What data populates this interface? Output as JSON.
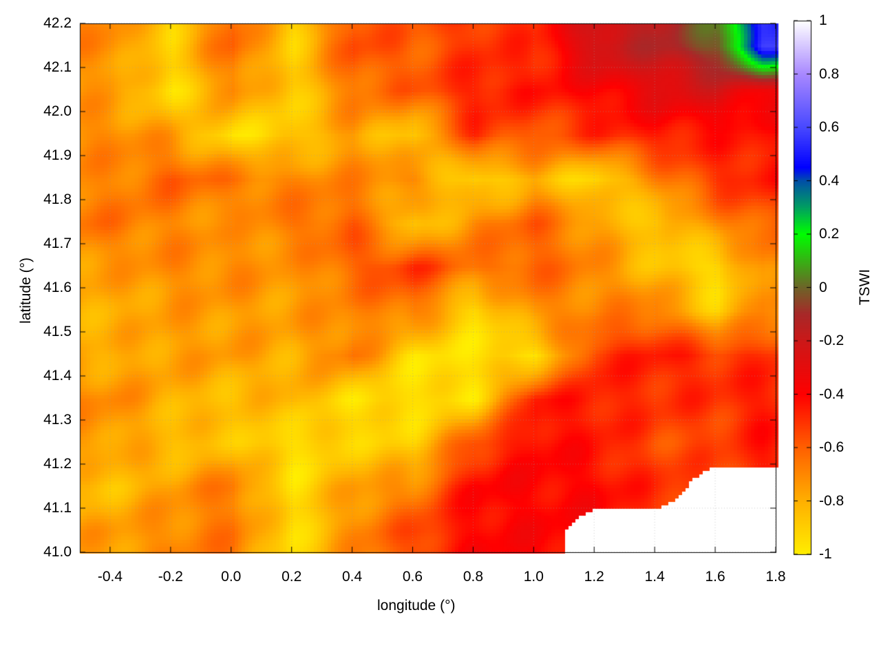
{
  "chart_data": {
    "type": "heatmap",
    "xlabel": "longitude (°)",
    "ylabel": "latitude (°)",
    "colorbar_label": "TSWI",
    "xlim": [
      -0.5,
      1.8
    ],
    "ylim": [
      41.0,
      42.2
    ],
    "clim": [
      -1,
      1
    ],
    "xticks": [
      "-0.4",
      "-0.2",
      "0.0",
      "0.2",
      "0.4",
      "0.6",
      "0.8",
      "1.0",
      "1.2",
      "1.4",
      "1.6",
      "1.8"
    ],
    "yticks": [
      "41.0",
      "41.1",
      "41.2",
      "41.3",
      "41.4",
      "41.5",
      "41.6",
      "41.7",
      "41.8",
      "41.9",
      "42.0",
      "42.1",
      "42.2"
    ],
    "cticks": [
      "-1",
      "-0.8",
      "-0.6",
      "-0.4",
      "-0.2",
      "0",
      "0.2",
      "0.4",
      "0.6",
      "0.8",
      "1"
    ],
    "grid": true,
    "contours": true,
    "palette": [
      [
        -1,
        "#ffee00"
      ],
      [
        -0.8,
        "#ffb000"
      ],
      [
        -0.6,
        "#ff6000"
      ],
      [
        -0.4,
        "#ff0000"
      ],
      [
        -0.2,
        "#cc1818"
      ],
      [
        -0.1,
        "#a82828"
      ],
      [
        0,
        "#6e6428"
      ],
      [
        0.2,
        "#00ff00"
      ],
      [
        0.3,
        "#00a060"
      ],
      [
        0.4,
        "#0050a8"
      ],
      [
        0.45,
        "#0000ff"
      ],
      [
        0.6,
        "#4848ff"
      ],
      [
        0.8,
        "#a888ff"
      ],
      [
        1,
        "#ffffff"
      ]
    ],
    "grid_lon": [
      -0.4,
      -0.2,
      0.0,
      0.2,
      0.4,
      0.6,
      0.8,
      1.0,
      1.2,
      1.4,
      1.6,
      1.75
    ],
    "grid_lat": [
      42.15,
      42.05,
      41.95,
      41.85,
      41.75,
      41.65,
      41.55,
      41.45,
      41.35,
      41.25,
      41.15,
      41.05
    ],
    "values": [
      [
        -0.7,
        -0.9,
        -0.6,
        -0.9,
        -0.55,
        -0.6,
        -0.5,
        -0.5,
        -0.2,
        -0.15,
        0.0,
        0.55
      ],
      [
        -0.75,
        -0.95,
        -0.7,
        -0.9,
        -0.65,
        -0.6,
        -0.45,
        -0.45,
        -0.4,
        -0.3,
        -0.25,
        -0.35
      ],
      [
        -0.7,
        -0.75,
        -0.95,
        -0.9,
        -0.75,
        -0.9,
        -0.5,
        -0.6,
        -0.5,
        -0.45,
        -0.45,
        -0.45
      ],
      [
        -0.7,
        -0.6,
        -0.65,
        -0.7,
        -0.7,
        -0.7,
        -0.95,
        -0.8,
        -0.95,
        -0.7,
        -0.5,
        -0.45
      ],
      [
        -0.65,
        -0.7,
        -0.75,
        -0.65,
        -0.6,
        -0.9,
        -0.7,
        -0.6,
        -0.75,
        -0.9,
        -0.7,
        -0.6
      ],
      [
        -0.75,
        -0.7,
        -0.7,
        -0.75,
        -0.6,
        -0.5,
        -0.65,
        -0.6,
        -0.7,
        -0.85,
        -0.95,
        -0.7
      ],
      [
        -0.8,
        -0.75,
        -0.75,
        -0.75,
        -0.7,
        -0.65,
        -0.95,
        -0.7,
        -0.7,
        -0.65,
        -0.9,
        -0.7
      ],
      [
        -0.8,
        -0.75,
        -0.75,
        -0.8,
        -0.65,
        -0.95,
        -0.95,
        -0.95,
        -0.5,
        -0.45,
        -0.5,
        -0.5
      ],
      [
        -0.7,
        -0.8,
        -0.85,
        -0.8,
        -0.95,
        -0.95,
        -0.95,
        -0.45,
        -0.45,
        -0.5,
        -0.5,
        -0.45
      ],
      [
        -0.75,
        -0.85,
        -0.85,
        -0.95,
        -0.9,
        -0.9,
        -0.55,
        -0.4,
        -0.45,
        -0.55,
        -0.55,
        -0.45
      ],
      [
        -0.85,
        -0.75,
        -0.65,
        -0.95,
        -0.75,
        -0.7,
        -0.4,
        -0.4,
        -0.4,
        -0.5,
        null,
        null
      ],
      [
        -0.75,
        -0.7,
        -0.65,
        -0.95,
        -0.7,
        -0.55,
        -0.4,
        -0.4,
        null,
        null,
        null,
        null
      ]
    ]
  }
}
